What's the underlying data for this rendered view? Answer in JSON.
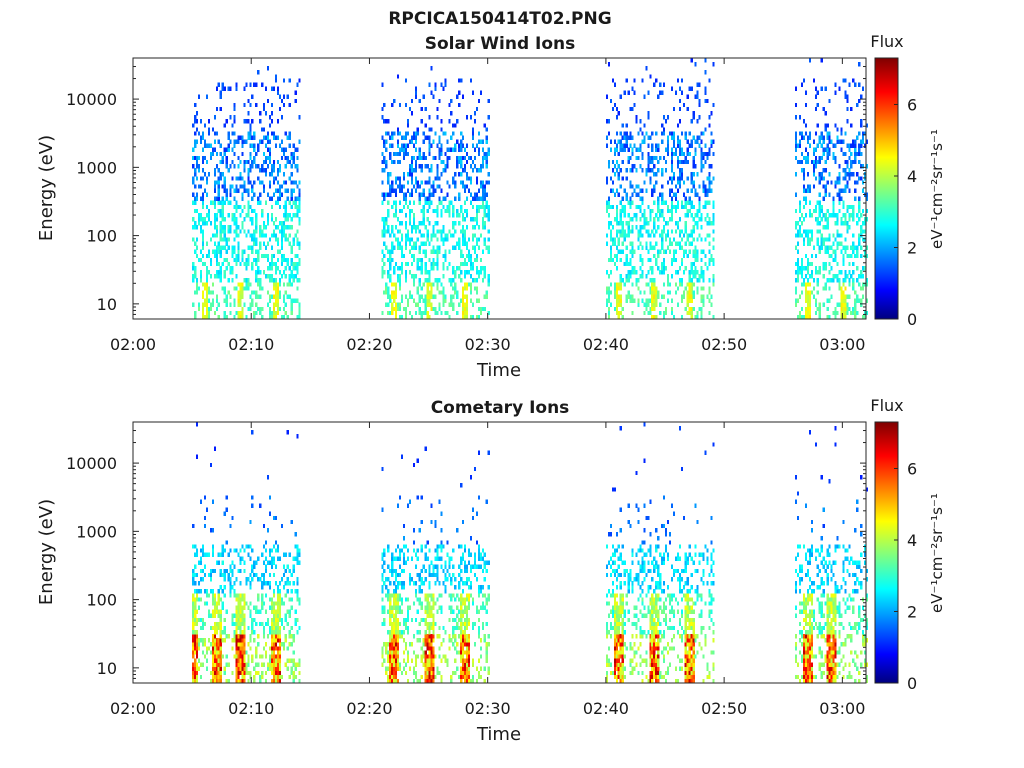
{
  "figure_title": "RPCICA150414T02.PNG",
  "chart_data": [
    {
      "type": "heatmap",
      "title": "Solar Wind Ions",
      "xlabel": "Time",
      "ylabel": "Energy (eV)",
      "yscale": "log",
      "ylim": [
        6,
        40000
      ],
      "xlim": [
        "02:00",
        "03:02"
      ],
      "x_ticks": [
        "02:00",
        "02:10",
        "02:20",
        "02:30",
        "02:40",
        "02:50",
        "03:00"
      ],
      "y_ticks": [
        "10",
        "100",
        "1000",
        "10000"
      ],
      "colorbar": {
        "label": "Flux",
        "unit": "eV⁻¹cm⁻²sr⁻¹s⁻¹",
        "range": [
          0,
          7.3
        ],
        "ticks": [
          "0",
          "2",
          "4",
          "6"
        ],
        "colormap": "jet"
      },
      "grid": false,
      "active_intervals": [
        {
          "start": "02:05",
          "end": "02:14",
          "peak_times": [
            "02:06",
            "02:09",
            "02:12"
          ]
        },
        {
          "start": "02:21",
          "end": "02:30",
          "peak_times": [
            "02:22",
            "02:25",
            "02:28"
          ]
        },
        {
          "start": "02:40",
          "end": "02:49",
          "peak_times": [
            "02:41",
            "02:44",
            "02:47"
          ]
        },
        {
          "start": "02:56",
          "end": "03:02",
          "peak_times": [
            "02:57",
            "03:00"
          ]
        }
      ]
    },
    {
      "type": "heatmap",
      "title": "Cometary Ions",
      "xlabel": "Time",
      "ylabel": "Energy (eV)",
      "yscale": "log",
      "ylim": [
        6,
        40000
      ],
      "xlim": [
        "02:00",
        "03:02"
      ],
      "x_ticks": [
        "02:00",
        "02:10",
        "02:20",
        "02:30",
        "02:40",
        "02:50",
        "03:00"
      ],
      "y_ticks": [
        "10",
        "100",
        "1000",
        "10000"
      ],
      "colorbar": {
        "label": "Flux",
        "unit": "eV⁻¹cm⁻²sr⁻¹s⁻¹",
        "range": [
          0,
          7.3
        ],
        "ticks": [
          "0",
          "2",
          "4",
          "6"
        ],
        "colormap": "jet"
      },
      "grid": false,
      "active_intervals": [
        {
          "start": "02:05",
          "end": "02:14",
          "peak_times": [
            "02:05",
            "02:07",
            "02:09",
            "02:12"
          ]
        },
        {
          "start": "02:21",
          "end": "02:30",
          "peak_times": [
            "02:22",
            "02:25",
            "02:28"
          ]
        },
        {
          "start": "02:40",
          "end": "02:49",
          "peak_times": [
            "02:41",
            "02:44",
            "02:47"
          ]
        },
        {
          "start": "02:56",
          "end": "03:02",
          "peak_times": [
            "02:57",
            "02:59"
          ]
        }
      ]
    }
  ]
}
